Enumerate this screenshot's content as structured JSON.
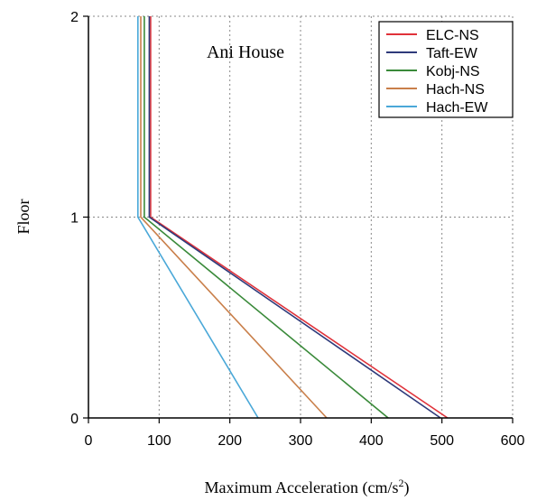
{
  "chart_data": {
    "type": "line",
    "annotation": "Ani House",
    "xlabel": "Maximum Acceleration (cm/s",
    "xlabel_sup": "2",
    "xlabel_close": ")",
    "ylabel": "Floor",
    "xlim": [
      0,
      600
    ],
    "ylim": [
      0,
      2
    ],
    "xticks": [
      0,
      100,
      200,
      300,
      400,
      500,
      600
    ],
    "yticks": [
      0,
      1,
      2
    ],
    "grid": true,
    "legend_position": "top-right",
    "series": [
      {
        "name": "ELC-NS",
        "color": "#e0323a",
        "points": [
          [
            508,
            0
          ],
          [
            88,
            1
          ],
          [
            88,
            2
          ]
        ]
      },
      {
        "name": "Taft-EW",
        "color": "#2e3a7a",
        "points": [
          [
            498,
            0
          ],
          [
            86,
            1
          ],
          [
            86,
            2
          ]
        ]
      },
      {
        "name": "Kobj-NS",
        "color": "#3a8a3a",
        "points": [
          [
            424,
            0
          ],
          [
            79,
            1
          ],
          [
            79,
            2
          ]
        ]
      },
      {
        "name": "Hach-NS",
        "color": "#c97f4a",
        "points": [
          [
            337,
            0
          ],
          [
            74,
            1
          ],
          [
            74,
            2
          ]
        ]
      },
      {
        "name": "Hach-EW",
        "color": "#4aa8d8",
        "points": [
          [
            240,
            0
          ],
          [
            70,
            1
          ],
          [
            70,
            2
          ]
        ]
      }
    ]
  }
}
